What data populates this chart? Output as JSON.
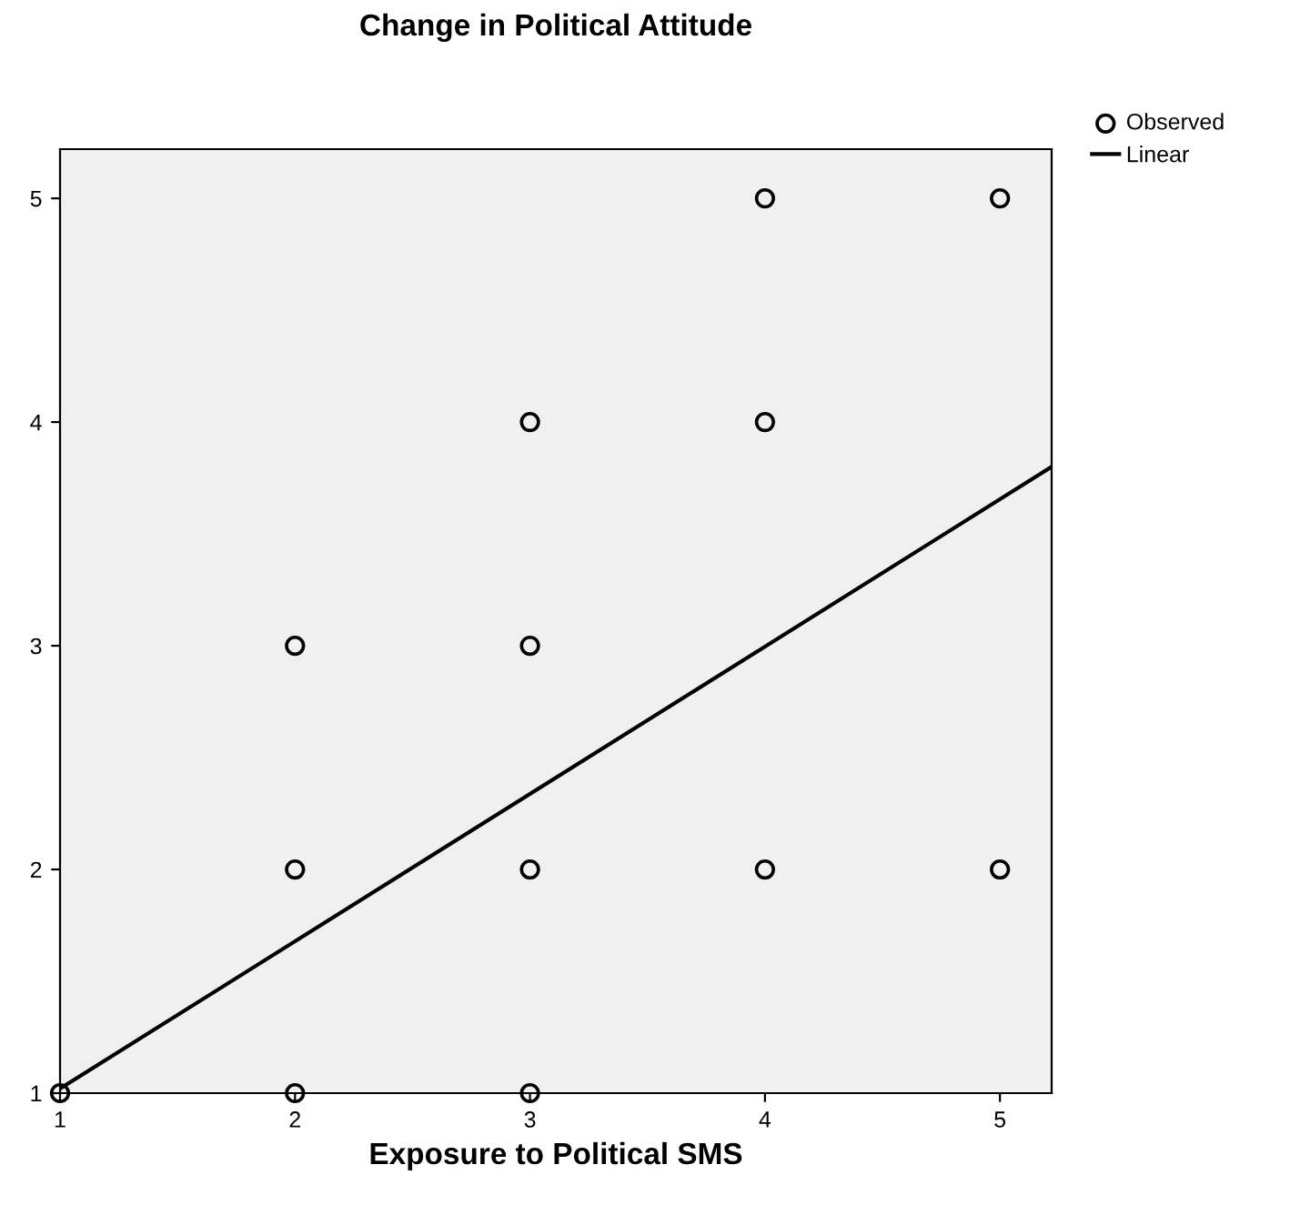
{
  "chart_data": {
    "type": "scatter",
    "title": "Change in Political Attitude",
    "xlabel": "Exposure to Political SMS",
    "xlim": [
      1,
      5.22
    ],
    "ylim": [
      1,
      5.22
    ],
    "xticks": [
      1,
      2,
      3,
      4,
      5
    ],
    "yticks": [
      1,
      2,
      3,
      4,
      5
    ],
    "grid": false,
    "legend": "top right",
    "series": [
      {
        "name": "Observed",
        "marker": "circle",
        "color": "#000000",
        "x": [
          1,
          2,
          2,
          2,
          3,
          3,
          3,
          3,
          4,
          4,
          4,
          5,
          5
        ],
        "values": [
          1,
          3,
          2,
          1,
          4,
          3,
          2,
          1,
          5,
          4,
          2,
          5,
          2
        ]
      },
      {
        "name": "Linear",
        "type": "line",
        "color": "#000000",
        "x": [
          1,
          5.22
        ],
        "values": [
          1.02,
          3.8
        ]
      }
    ]
  }
}
